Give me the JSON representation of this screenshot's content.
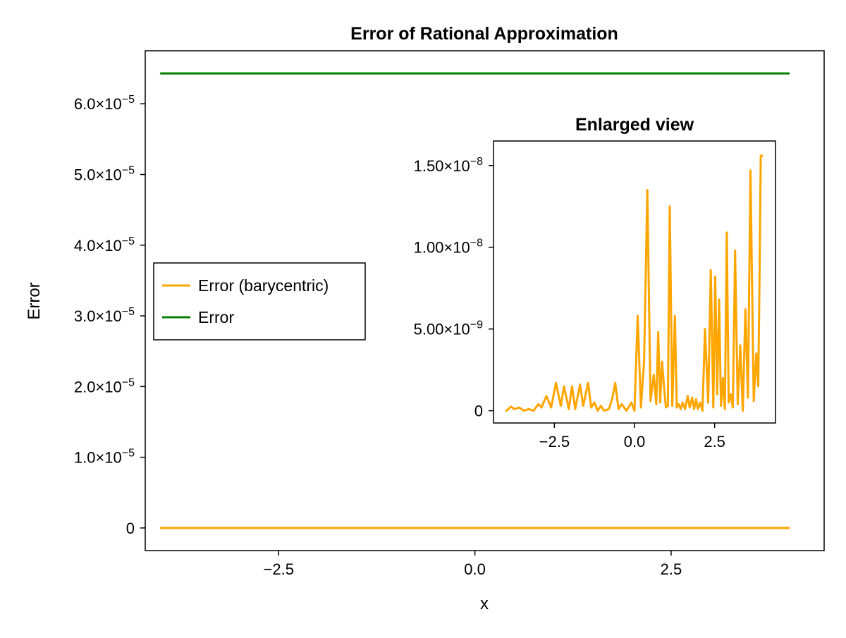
{
  "chart_data": [
    {
      "id": "main",
      "type": "line",
      "title": "Error of Rational Approximation",
      "xlabel": "x",
      "ylabel": "Error",
      "xlim": [
        -4.2,
        4.45
      ],
      "ylim": [
        -3.2e-06,
        6.75e-05
      ],
      "x_ticks": [
        -2.5,
        0.0,
        2.5
      ],
      "x_tick_labels": [
        "−2.5",
        "0.0",
        "2.5"
      ],
      "y_ticks": [
        0,
        1e-05,
        2e-05,
        3e-05,
        4e-05,
        5e-05,
        6e-05
      ],
      "y_tick_labels": [
        {
          "mantissa": "0",
          "exp": ""
        },
        {
          "mantissa": "1.0×10",
          "exp": "−5"
        },
        {
          "mantissa": "2.0×10",
          "exp": "−5"
        },
        {
          "mantissa": "3.0×10",
          "exp": "−5"
        },
        {
          "mantissa": "4.0×10",
          "exp": "−5"
        },
        {
          "mantissa": "5.0×10",
          "exp": "−5"
        },
        {
          "mantissa": "6.0×10",
          "exp": "−5"
        }
      ],
      "grid": false,
      "legend_position": "left-center",
      "series": [
        {
          "name": "Error (barycentric)",
          "color": "#FFA500",
          "x": [
            -4.0,
            4.0
          ],
          "y": [
            0,
            0
          ]
        },
        {
          "name": "Error",
          "color": "#008000",
          "x": [
            -4.0,
            4.0
          ],
          "y": [
            6.43e-05,
            6.43e-05
          ]
        }
      ]
    },
    {
      "id": "inset",
      "type": "line",
      "title": "Enlarged view",
      "xlim": [
        -4.4,
        4.4
      ],
      "ylim": [
        -7.5e-10,
        1.65e-08
      ],
      "x_ticks": [
        -2.5,
        0.0,
        2.5
      ],
      "x_tick_labels": [
        "−2.5",
        "0.0",
        "2.5"
      ],
      "y_ticks": [
        0,
        5e-09,
        1e-08,
        1.5e-08
      ],
      "y_tick_labels": [
        {
          "mantissa": "0",
          "exp": ""
        },
        {
          "mantissa": "5.00×10",
          "exp": "−9"
        },
        {
          "mantissa": "1.00×10",
          "exp": "−8"
        },
        {
          "mantissa": "1.50×10",
          "exp": "−8"
        }
      ],
      "grid": false,
      "series": [
        {
          "name": "Error (barycentric)",
          "color": "#FFA500",
          "x": [
            -4.0,
            -3.85,
            -3.75,
            -3.6,
            -3.45,
            -3.3,
            -3.15,
            -3.0,
            -2.9,
            -2.75,
            -2.6,
            -2.45,
            -2.3,
            -2.2,
            -2.05,
            -1.95,
            -1.85,
            -1.7,
            -1.6,
            -1.45,
            -1.35,
            -1.25,
            -1.15,
            -1.05,
            -0.95,
            -0.8,
            -0.7,
            -0.6,
            -0.5,
            -0.4,
            -0.25,
            -0.1,
            0.0,
            0.1,
            0.2,
            0.3,
            0.4,
            0.5,
            0.6,
            0.68,
            0.74,
            0.8,
            0.86,
            0.92,
            0.98,
            1.04,
            1.1,
            1.18,
            1.26,
            1.32,
            1.38,
            1.44,
            1.5,
            1.58,
            1.66,
            1.72,
            1.8,
            1.86,
            1.92,
            1.98,
            2.05,
            2.12,
            2.2,
            2.3,
            2.38,
            2.46,
            2.52,
            2.58,
            2.64,
            2.7,
            2.76,
            2.82,
            2.88,
            2.94,
            3.0,
            3.07,
            3.14,
            3.22,
            3.3,
            3.38,
            3.46,
            3.54,
            3.62,
            3.72,
            3.8,
            3.86,
            3.9,
            3.94,
            3.98
          ],
          "y": [
            0,
            2.5e-10,
            1e-10,
            2e-10,
            0,
            1e-10,
            0,
            4e-10,
            2e-10,
            9e-10,
            2e-10,
            1.7e-09,
            3e-10,
            1.5e-09,
            1e-10,
            1.5e-09,
            1e-10,
            1.6e-09,
            3e-10,
            1.7e-09,
            2e-10,
            5e-10,
            0,
            3e-10,
            0,
            1e-10,
            7e-10,
            1.7e-09,
            1e-10,
            4e-10,
            0,
            5e-10,
            0,
            5.8e-09,
            2e-10,
            3e-09,
            1.35e-08,
            6e-10,
            2.2e-09,
            4e-10,
            4.8e-09,
            5e-10,
            3e-09,
            1.5e-09,
            2e-10,
            3e-10,
            1.25e-08,
            3e-10,
            5.8e-09,
            2e-10,
            4e-10,
            1e-10,
            5e-10,
            1e-10,
            9e-10,
            2e-10,
            8e-10,
            1e-10,
            7e-10,
            1e-10,
            5e-10,
            0,
            5e-09,
            5e-10,
            8.6e-09,
            2e-10,
            8.2e-09,
            1e-09,
            6.8e-09,
            3e-10,
            2e-09,
            1e-10,
            1.09e-08,
            5e-10,
            1e-09,
            2e-10,
            9.8e-09,
            4e-10,
            4e-09,
            0,
            6.2e-09,
            8e-10,
            1.47e-08,
            6e-10,
            3.5e-09,
            1.5e-09,
            8e-09,
            1.56e-08,
            1.56e-08
          ]
        }
      ]
    }
  ]
}
